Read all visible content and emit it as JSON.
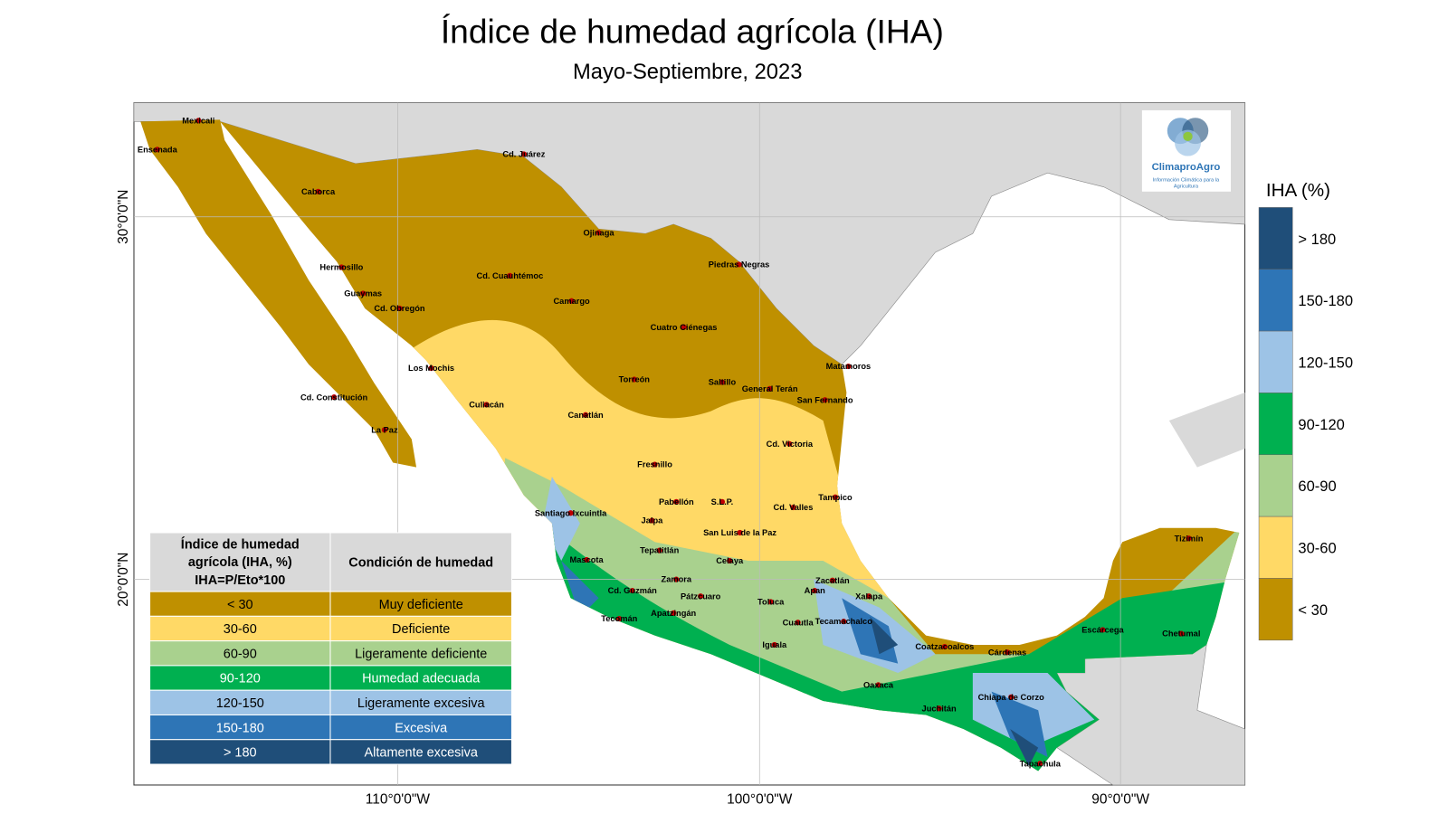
{
  "title": "Índice de humedad agrícola (IHA)",
  "subtitle": "Mayo-Septiembre, 2023",
  "map": {
    "lat_labels": [
      "30°0'0\"N",
      "20°0'0\"N"
    ],
    "lon_labels": [
      "110°0'0\"W",
      "100°0'0\"W",
      "90°0'0\"W"
    ],
    "cities": [
      "Mexicali",
      "Ensenada",
      "Cd. Juárez",
      "Caborca",
      "Ojinaga",
      "Hermosillo",
      "Piedras Negras",
      "Cd. Cuauhtémoc",
      "Guaymas",
      "Cd. Obregón",
      "Camargo",
      "Cuatro Ciénegas",
      "Los Mochis",
      "Matamoros",
      "Torreón",
      "Saltillo",
      "General Terán",
      "Culiacán",
      "San Fernando",
      "Cd. Constitución",
      "Canatlán",
      "La Paz",
      "Cd. Victoria",
      "Fresnillo",
      "Tampico",
      "Pabellón",
      "S.L.P.",
      "Cd. Valles",
      "Santiago Ixcuintla",
      "Jalpa",
      "San Luis de la Paz",
      "Tepatitlán",
      "Celaya",
      "Mascota",
      "Zamora",
      "Zacatlán",
      "Cd. Guzmán",
      "Pátzcuaro",
      "Toluca",
      "Apan",
      "Xalapa",
      "Tecomán",
      "Apatzingán",
      "Iguala",
      "Cuautla",
      "Tecamachalco",
      "Coatzacoalcos",
      "Cárdenas",
      "Escárcega",
      "Chetumal",
      "Tizimín",
      "Oaxaca",
      "Chiapa de Corzo",
      "Juchitán",
      "Tapachula"
    ]
  },
  "logo": {
    "name": "ClimaproAgro",
    "tagline": [
      "Información Climática para la",
      "Agricultura"
    ]
  },
  "legend": {
    "title": "IHA (%)",
    "classes": [
      {
        "label": "> 180",
        "color": "#1f4e79"
      },
      {
        "label": "150-180",
        "color": "#2e75b6"
      },
      {
        "label": "120-150",
        "color": "#9dc3e6"
      },
      {
        "label": "90-120",
        "color": "#00b050"
      },
      {
        "label": "60-90",
        "color": "#a9d18e"
      },
      {
        "label": "30-60",
        "color": "#ffd966"
      },
      {
        "label": "< 30",
        "color": "#bf9000"
      }
    ]
  },
  "table": {
    "header": [
      [
        "Índice de humedad",
        "agrícola (IHA, %)",
        "IHA=P/Eto*100"
      ],
      "Condición de humedad"
    ],
    "rows": [
      {
        "range": "< 30",
        "condition": "Muy deficiente",
        "color": "#bf9000"
      },
      {
        "range": "30-60",
        "condition": "Deficiente",
        "color": "#ffd966"
      },
      {
        "range": "60-90",
        "condition": "Ligeramente deficiente",
        "color": "#a9d18e"
      },
      {
        "range": "90-120",
        "condition": "Humedad adecuada",
        "color": "#00b050"
      },
      {
        "range": "120-150",
        "condition": "Ligeramente excesiva",
        "color": "#9dc3e6"
      },
      {
        "range": "150-180",
        "condition": "Excesiva",
        "color": "#2e75b6"
      },
      {
        "range": "> 180",
        "condition": "Altamente excesiva",
        "color": "#1f4e79"
      }
    ]
  }
}
